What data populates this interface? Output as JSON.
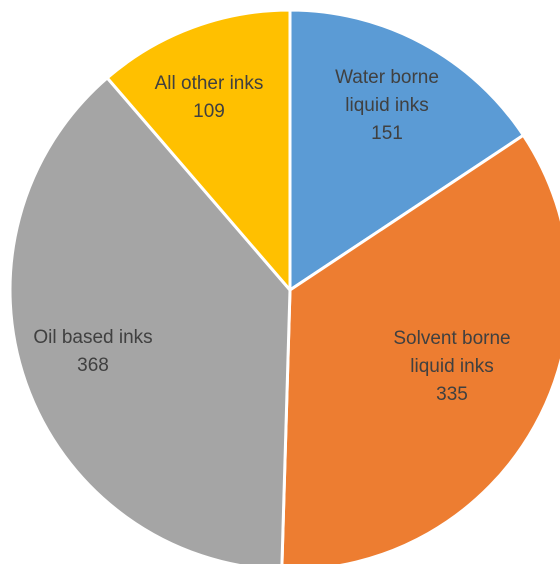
{
  "chart_data": {
    "type": "pie",
    "categories": [
      [
        "Water borne",
        "liquid inks"
      ],
      [
        "Solvent borne",
        "liquid inks"
      ],
      [
        "Oil based inks"
      ],
      [
        "All other inks"
      ]
    ],
    "values": [
      151,
      335,
      368,
      109
    ],
    "value_labels": [
      "151",
      "335",
      "368",
      "109"
    ],
    "colors": [
      "#5b9bd5",
      "#ed7d31",
      "#a5a5a5",
      "#ffc000"
    ],
    "start_angle": "12 o'clock",
    "direction": "clockwise",
    "legend": "none",
    "data_labels": "inside slices"
  }
}
